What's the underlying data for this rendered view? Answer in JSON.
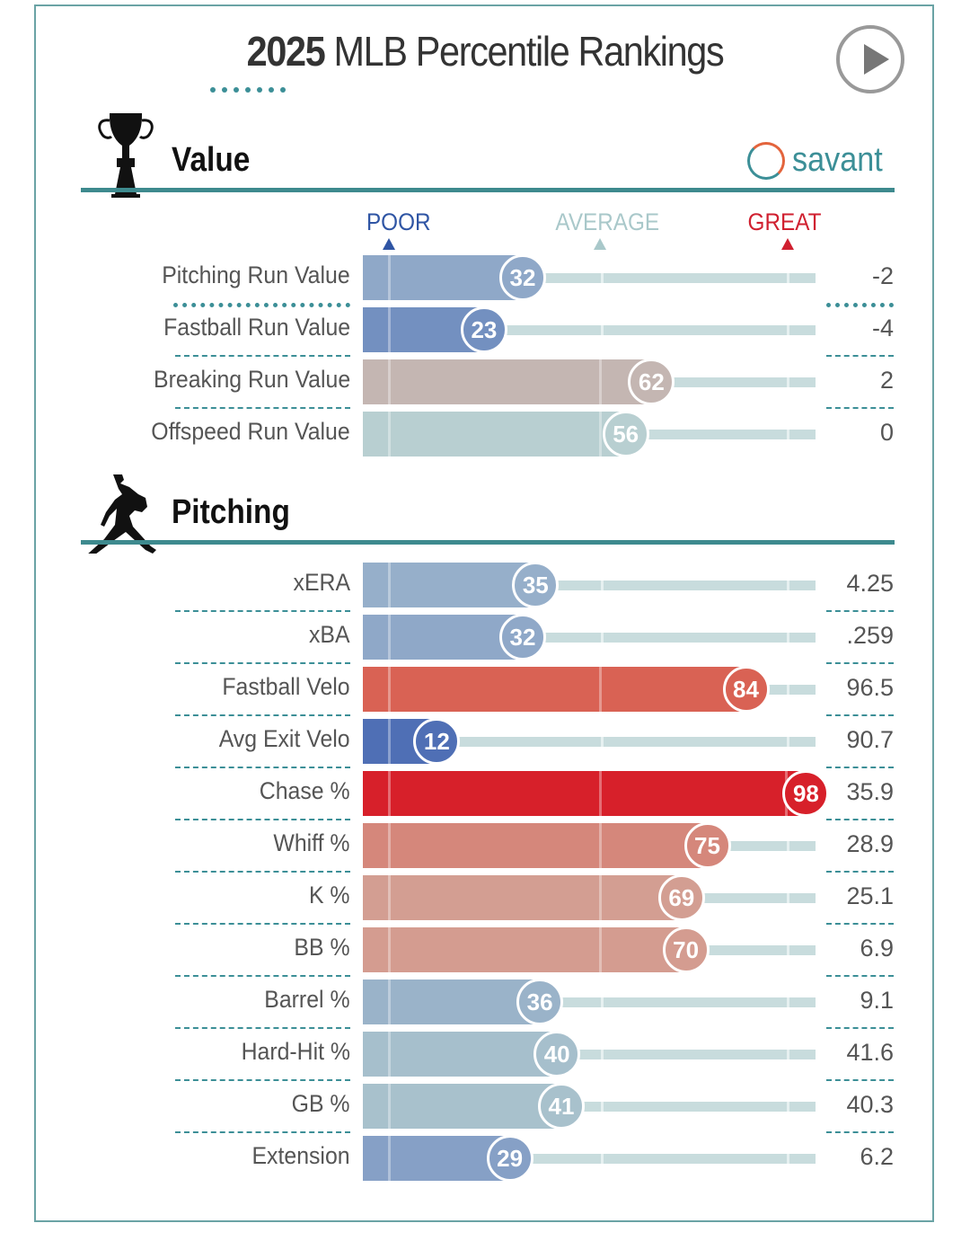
{
  "title": {
    "year": "2025",
    "rest": "MLB Percentile Rankings"
  },
  "brand": "savant",
  "scale": {
    "poor": "POOR",
    "average": "AVERAGE",
    "great": "GREAT",
    "poor_color": "#2f55a4",
    "average_color": "#a9c8ca",
    "great_color": "#d02030"
  },
  "sections": [
    {
      "title": "Value",
      "icon": "trophy-icon",
      "rows": [
        {
          "label": "Pitching Run Value",
          "percentile": 32,
          "value": "-2",
          "color": "#8fa8c8"
        },
        {
          "label": "Fastball Run Value",
          "percentile": 23,
          "value": "-4",
          "color": "#7390c0"
        },
        {
          "label": "Breaking Run Value",
          "percentile": 62,
          "value": "2",
          "color": "#c4b6b2"
        },
        {
          "label": "Offspeed Run Value",
          "percentile": 56,
          "value": "0",
          "color": "#b8cfd1"
        }
      ]
    },
    {
      "title": "Pitching",
      "icon": "pitcher-icon",
      "rows": [
        {
          "label": "xERA",
          "percentile": 35,
          "value": "4.25",
          "color": "#96afca"
        },
        {
          "label": "xBA",
          "percentile": 32,
          "value": ".259",
          "color": "#8fa8c8"
        },
        {
          "label": "Fastball Velo",
          "percentile": 84,
          "value": "96.5",
          "color": "#d96254"
        },
        {
          "label": "Avg Exit Velo",
          "percentile": 12,
          "value": "90.7",
          "color": "#4f6fb5"
        },
        {
          "label": "Chase %",
          "percentile": 98,
          "value": "35.9",
          "color": "#d7202a"
        },
        {
          "label": "Whiff %",
          "percentile": 75,
          "value": "28.9",
          "color": "#d5877b"
        },
        {
          "label": "K %",
          "percentile": 69,
          "value": "25.1",
          "color": "#d39e92"
        },
        {
          "label": "BB %",
          "percentile": 70,
          "value": "6.9",
          "color": "#d49c90"
        },
        {
          "label": "Barrel %",
          "percentile": 36,
          "value": "9.1",
          "color": "#9ab3c9"
        },
        {
          "label": "Hard-Hit %",
          "percentile": 40,
          "value": "41.6",
          "color": "#a6bfcc"
        },
        {
          "label": "GB %",
          "percentile": 41,
          "value": "40.3",
          "color": "#a8c1cc"
        },
        {
          "label": "Extension",
          "percentile": 29,
          "value": "6.2",
          "color": "#86a0c6"
        }
      ]
    }
  ],
  "chart_data": {
    "type": "bar",
    "title": "2025 MLB Percentile Rankings",
    "xlim": [
      0,
      100
    ],
    "categories": [
      "Pitching Run Value",
      "Fastball Run Value",
      "Breaking Run Value",
      "Offspeed Run Value",
      "xERA",
      "xBA",
      "Fastball Velo",
      "Avg Exit Velo",
      "Chase %",
      "Whiff %",
      "K %",
      "BB %",
      "Barrel %",
      "Hard-Hit %",
      "GB %",
      "Extension"
    ],
    "values": [
      32,
      23,
      62,
      56,
      35,
      32,
      84,
      12,
      98,
      75,
      69,
      70,
      36,
      40,
      41,
      29
    ]
  }
}
